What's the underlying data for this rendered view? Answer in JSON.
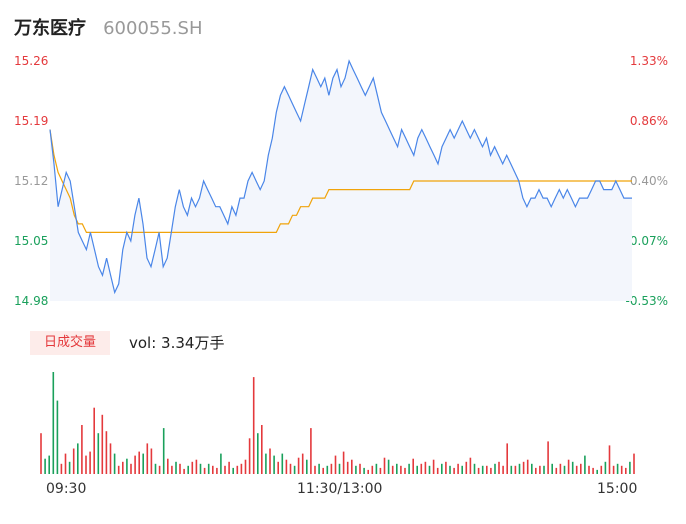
{
  "header": {
    "name": "万东医疗",
    "code": "600055.SH"
  },
  "volume_panel": {
    "tag_label": "日成交量",
    "vol_label": "vol: 3.34万手"
  },
  "colors": {
    "price_line": "#4a86e8",
    "avg_line": "#f0a30a",
    "up": "#e4393c",
    "down": "#1aa05b",
    "area_fill": "#f3f6fc"
  },
  "chart_data": [
    {
      "type": "line",
      "title": "",
      "x_ticks": [
        "09:30",
        "11:30/13:00",
        "15:00"
      ],
      "ylim": [
        14.98,
        15.26
      ],
      "y_ticks": [
        {
          "value": "15.26",
          "pct": "1.33%"
        },
        {
          "value": "15.19",
          "pct": "0.86%"
        },
        {
          "value": "15.12",
          "pct": "0.40%"
        },
        {
          "value": "15.05",
          "pct": "-0.07%"
        },
        {
          "value": "14.98",
          "pct": "-0.53%"
        }
      ],
      "prev_close": 15.12,
      "series": [
        {
          "role": "price",
          "values": [
            15.18,
            15.14,
            15.09,
            15.11,
            15.13,
            15.12,
            15.09,
            15.06,
            15.05,
            15.04,
            15.06,
            15.04,
            15.02,
            15.01,
            15.03,
            15.01,
            14.99,
            15,
            15.04,
            15.06,
            15.05,
            15.08,
            15.1,
            15.07,
            15.03,
            15.02,
            15.04,
            15.06,
            15.02,
            15.03,
            15.06,
            15.09,
            15.11,
            15.09,
            15.08,
            15.1,
            15.09,
            15.1,
            15.12,
            15.11,
            15.1,
            15.09,
            15.09,
            15.08,
            15.07,
            15.09,
            15.08,
            15.1,
            15.1,
            15.12,
            15.13,
            15.12,
            15.11,
            15.12,
            15.15,
            15.17,
            15.2,
            15.22,
            15.23,
            15.22,
            15.21,
            15.2,
            15.19,
            15.21,
            15.23,
            15.25,
            15.24,
            15.23,
            15.24,
            15.22,
            15.24,
            15.25,
            15.23,
            15.24,
            15.26,
            15.25,
            15.24,
            15.23,
            15.22,
            15.23,
            15.24,
            15.22,
            15.2,
            15.19,
            15.18,
            15.17,
            15.16,
            15.18,
            15.17,
            15.16,
            15.15,
            15.17,
            15.18,
            15.17,
            15.16,
            15.15,
            15.14,
            15.16,
            15.17,
            15.18,
            15.17,
            15.18,
            15.19,
            15.18,
            15.17,
            15.18,
            15.17,
            15.16,
            15.17,
            15.15,
            15.16,
            15.15,
            15.14,
            15.15,
            15.14,
            15.13,
            15.12,
            15.1,
            15.09,
            15.1,
            15.1,
            15.11,
            15.1,
            15.1,
            15.09,
            15.1,
            15.11,
            15.1,
            15.11,
            15.1,
            15.09,
            15.1,
            15.1,
            15.1,
            15.11,
            15.12,
            15.12,
            15.11,
            15.11,
            15.11,
            15.12,
            15.11,
            15.1,
            15.1,
            15.1
          ]
        },
        {
          "role": "average",
          "values": [
            15.18,
            15.15,
            15.13,
            15.12,
            15.11,
            15.1,
            15.08,
            15.07,
            15.07,
            15.06,
            15.06,
            15.06,
            15.06,
            15.06,
            15.06,
            15.06,
            15.06,
            15.06,
            15.06,
            15.06,
            15.06,
            15.06,
            15.06,
            15.06,
            15.06,
            15.06,
            15.06,
            15.06,
            15.06,
            15.06,
            15.06,
            15.06,
            15.06,
            15.06,
            15.06,
            15.06,
            15.06,
            15.06,
            15.06,
            15.06,
            15.06,
            15.06,
            15.06,
            15.06,
            15.06,
            15.06,
            15.06,
            15.06,
            15.06,
            15.06,
            15.06,
            15.06,
            15.06,
            15.06,
            15.06,
            15.06,
            15.06,
            15.07,
            15.07,
            15.07,
            15.08,
            15.08,
            15.09,
            15.09,
            15.09,
            15.1,
            15.1,
            15.1,
            15.1,
            15.11,
            15.11,
            15.11,
            15.11,
            15.11,
            15.11,
            15.11,
            15.11,
            15.11,
            15.11,
            15.11,
            15.11,
            15.11,
            15.11,
            15.11,
            15.11,
            15.11,
            15.11,
            15.11,
            15.11,
            15.11,
            15.12,
            15.12,
            15.12,
            15.12,
            15.12,
            15.12,
            15.12,
            15.12,
            15.12,
            15.12,
            15.12,
            15.12,
            15.12,
            15.12,
            15.12,
            15.12,
            15.12,
            15.12,
            15.12,
            15.12,
            15.12,
            15.12,
            15.12,
            15.12,
            15.12,
            15.12,
            15.12,
            15.12,
            15.12,
            15.12,
            15.12,
            15.12,
            15.12,
            15.12,
            15.12,
            15.12,
            15.12,
            15.12,
            15.12,
            15.12,
            15.12,
            15.12,
            15.12,
            15.12,
            15.12,
            15.12,
            15.12,
            15.12,
            15.12,
            15.12,
            15.12,
            15.12,
            15.12,
            15.12,
            15.12
          ]
        }
      ]
    },
    {
      "type": "bar",
      "title": "",
      "ylim": [
        0,
        100
      ],
      "values": [
        40,
        15,
        18,
        100,
        72,
        10,
        20,
        12,
        25,
        30,
        48,
        18,
        22,
        65,
        40,
        58,
        42,
        30,
        20,
        8,
        12,
        15,
        10,
        18,
        22,
        20,
        30,
        25,
        10,
        8,
        45,
        15,
        8,
        12,
        10,
        5,
        8,
        12,
        14,
        10,
        6,
        10,
        8,
        6,
        20,
        8,
        12,
        6,
        8,
        10,
        14,
        35,
        95,
        40,
        48,
        20,
        25,
        18,
        12,
        20,
        14,
        10,
        8,
        16,
        20,
        14,
        45,
        8,
        10,
        6,
        8,
        10,
        18,
        10,
        22,
        12,
        14,
        8,
        10,
        6,
        4,
        8,
        10,
        6,
        16,
        14,
        8,
        10,
        8,
        6,
        10,
        15,
        8,
        10,
        12,
        8,
        14,
        6,
        10,
        12,
        8,
        6,
        10,
        8,
        12,
        16,
        10,
        6,
        8,
        8,
        6,
        10,
        12,
        8,
        30,
        8,
        8,
        10,
        12,
        14,
        10,
        6,
        8,
        8,
        32,
        10,
        6,
        10,
        8,
        14,
        12,
        8,
        10,
        18,
        8,
        6,
        4,
        8,
        12,
        28,
        8,
        10,
        8,
        6,
        12,
        20
      ],
      "up": [
        1,
        0,
        0,
        0,
        0,
        1,
        1,
        0,
        1,
        0,
        1,
        1,
        1,
        1,
        0,
        1,
        1,
        1,
        0,
        1,
        1,
        0,
        1,
        1,
        1,
        0,
        1,
        1,
        0,
        1,
        0,
        1,
        1,
        0,
        1,
        1,
        0,
        1,
        1,
        0,
        1,
        0,
        1,
        1,
        0,
        1,
        1,
        0,
        1,
        1,
        1,
        1,
        1,
        0,
        1,
        0,
        1,
        0,
        1,
        0,
        1,
        1,
        0,
        1,
        1,
        0,
        1,
        1,
        0,
        1,
        0,
        1,
        1,
        0,
        1,
        1,
        1,
        0,
        1,
        0,
        1,
        1,
        0,
        1,
        1,
        0,
        1,
        0,
        1,
        1,
        0,
        1,
        0,
        1,
        1,
        0,
        1,
        1,
        0,
        1,
        0,
        1,
        1,
        0,
        1,
        1,
        0,
        1,
        0,
        1,
        1,
        0,
        1,
        1,
        1,
        0,
        1,
        0,
        1,
        1,
        0,
        1,
        1,
        0,
        1,
        0,
        1,
        1,
        0,
        1,
        0,
        1,
        1,
        0,
        1,
        1,
        0,
        1,
        0,
        1,
        1,
        0,
        1,
        1,
        0,
        1
      ]
    }
  ]
}
